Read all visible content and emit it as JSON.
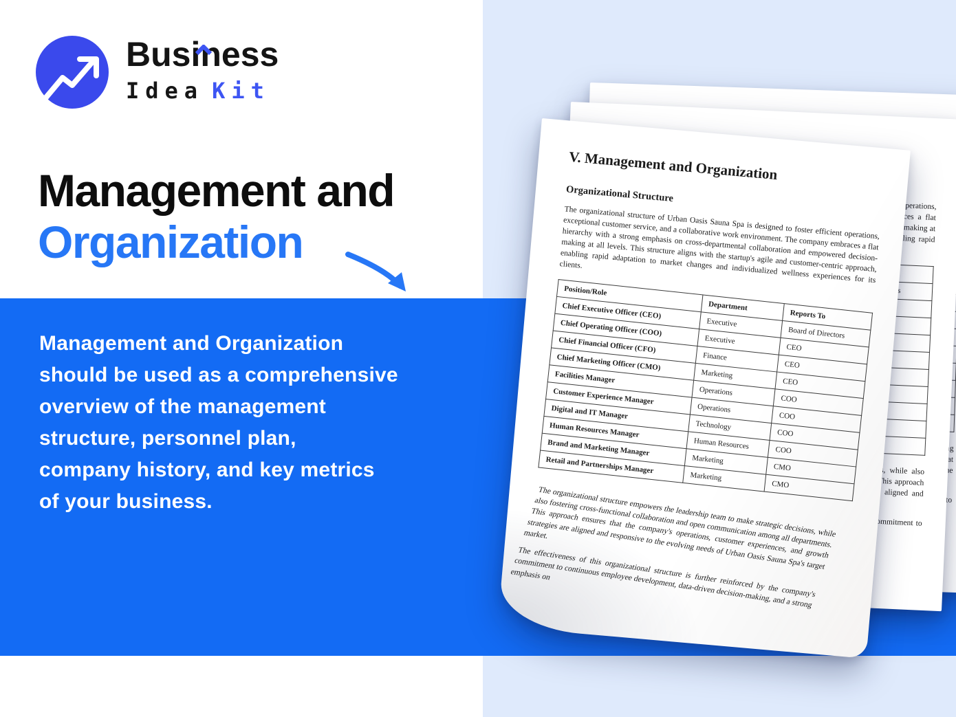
{
  "logo": {
    "word_top": "Business",
    "word_bottom_left": "Idea",
    "word_bottom_right": "Kit"
  },
  "hero": {
    "title_line1": "Management and",
    "title_line2": "Organization"
  },
  "description": {
    "text": "Management and Organization\nshould be used as a comprehensive\noverview of the management\nstructure, personnel plan,\ncompany history, and key metrics\nof your business."
  },
  "document": {
    "title": "V. Management and Organization",
    "section_heading": "Organizational Structure",
    "intro_paragraph": "The organizational structure of Urban Oasis Sauna Spa is designed to foster efficient operations, exceptional customer service, and a collaborative work environment. The company embraces a flat hierarchy with a strong emphasis on cross-departmental collaboration and empowered decision-making at all levels. This structure aligns with the startup's agile and customer-centric approach, enabling rapid adaptation to market changes and individualized wellness experiences for its clients.",
    "table": {
      "headers": [
        "Position/Role",
        "Department",
        "Reports To"
      ],
      "rows": [
        [
          "Chief Executive Officer (CEO)",
          "Executive",
          "Board of Directors"
        ],
        [
          "Chief Operating Officer (COO)",
          "Executive",
          "CEO"
        ],
        [
          "Chief Financial Officer (CFO)",
          "Finance",
          "CEO"
        ],
        [
          "Chief Marketing Officer (CMO)",
          "Marketing",
          "CEO"
        ],
        [
          "Facilities Manager",
          "Operations",
          "COO"
        ],
        [
          "Customer Experience Manager",
          "Operations",
          "COO"
        ],
        [
          "Digital and IT Manager",
          "Technology",
          "COO"
        ],
        [
          "Human Resources Manager",
          "Human Resources",
          "COO"
        ],
        [
          "Brand and Marketing Manager",
          "Marketing",
          "CMO"
        ],
        [
          "Retail and Partnerships Manager",
          "Marketing",
          "CMO"
        ]
      ]
    },
    "closing_paragraph_1": "The organizational structure empowers the leadership team to make strategic decisions, while also fostering cross-functional collaboration and open communication among all departments. This approach ensures that the company's operations, customer experiences, and growth strategies are aligned and responsive to the evolving needs of Urban Oasis Sauna Spa's target market.",
    "closing_paragraph_2": "The effectiveness of this organizational structure is further reinforced by the company's commitment to continuous employee development, data-driven decision-making, and a strong emphasis on"
  },
  "colors": {
    "band_blue": "#136BF4",
    "panel_light_blue": "#DFEAFC",
    "heading_blue": "#2777F6",
    "logo_circle_blue": "#3A49EC",
    "kit_blue": "#3D55F3",
    "paper_white": "#FFFFFF",
    "text_dark": "#0D0D0D"
  }
}
